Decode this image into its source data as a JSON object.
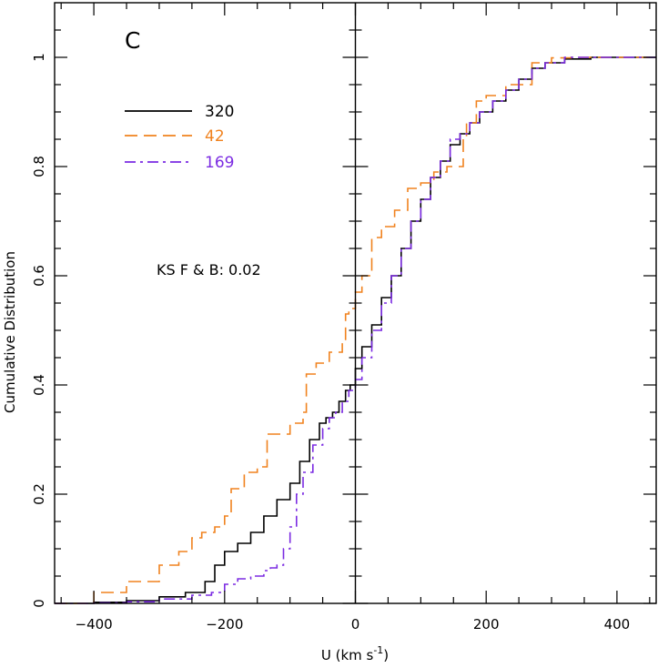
{
  "chart_data": {
    "type": "line",
    "subtype": "cumulative-distribution-step",
    "panel_label": "C",
    "xlabel_main": "U (km s",
    "xlabel_sup": "-1",
    "xlabel_close": ")",
    "ylabel": "Cumulative Distribution",
    "xlim": [
      -460,
      460
    ],
    "ylim": [
      0,
      1.1
    ],
    "xticks_major": [
      -400,
      -200,
      0,
      200,
      400
    ],
    "xtick_labels": [
      "−400",
      "−200",
      "0",
      "200",
      "400"
    ],
    "yticks_major": [
      0,
      0.2,
      0.4,
      0.6,
      0.8,
      1
    ],
    "ytick_labels": [
      "0",
      "0.2",
      "0.4",
      "0.6",
      "0.8",
      "1"
    ],
    "vertical_line_at": 0,
    "annotation": "KS F & B: 0.02",
    "legend_placement": "top-left",
    "series": [
      {
        "name": "320",
        "color": "#000000",
        "style": "solid",
        "x": [
          -460,
          -400,
          -350,
          -300,
          -260,
          -230,
          -215,
          -200,
          -180,
          -160,
          -140,
          -120,
          -100,
          -85,
          -70,
          -55,
          -45,
          -35,
          -25,
          -15,
          -8,
          0,
          10,
          25,
          40,
          55,
          70,
          85,
          100,
          115,
          130,
          145,
          160,
          175,
          190,
          210,
          230,
          250,
          270,
          290,
          320,
          360,
          460
        ],
        "y": [
          0,
          0.002,
          0.005,
          0.012,
          0.02,
          0.04,
          0.07,
          0.095,
          0.11,
          0.13,
          0.16,
          0.19,
          0.22,
          0.26,
          0.3,
          0.33,
          0.34,
          0.35,
          0.37,
          0.39,
          0.4,
          0.43,
          0.47,
          0.51,
          0.56,
          0.6,
          0.65,
          0.7,
          0.74,
          0.78,
          0.81,
          0.84,
          0.86,
          0.88,
          0.9,
          0.92,
          0.94,
          0.96,
          0.98,
          0.99,
          0.997,
          1,
          1
        ]
      },
      {
        "name": "42",
        "color": "#f0821e",
        "style": "dashed",
        "x": [
          -460,
          -400,
          -350,
          -300,
          -270,
          -250,
          -235,
          -215,
          -200,
          -190,
          -170,
          -150,
          -135,
          -120,
          -100,
          -80,
          -75,
          -60,
          -40,
          -20,
          -15,
          -10,
          0,
          10,
          25,
          40,
          60,
          80,
          100,
          120,
          140,
          160,
          165,
          170,
          185,
          200,
          230,
          270,
          300,
          330,
          460
        ],
        "y": [
          0,
          0.02,
          0.04,
          0.07,
          0.095,
          0.12,
          0.13,
          0.14,
          0.16,
          0.21,
          0.24,
          0.25,
          0.31,
          0.31,
          0.33,
          0.35,
          0.42,
          0.44,
          0.46,
          0.48,
          0.53,
          0.54,
          0.57,
          0.6,
          0.67,
          0.69,
          0.72,
          0.76,
          0.77,
          0.79,
          0.8,
          0.8,
          0.85,
          0.88,
          0.92,
          0.93,
          0.95,
          0.99,
          0.999,
          1,
          1
        ]
      },
      {
        "name": "169",
        "color": "#7b2be2",
        "style": "dashdot",
        "x": [
          -460,
          -400,
          -350,
          -300,
          -250,
          -220,
          -200,
          -180,
          -160,
          -140,
          -130,
          -120,
          -110,
          -100,
          -90,
          -80,
          -65,
          -50,
          -40,
          -30,
          -20,
          -10,
          0,
          10,
          25,
          40,
          55,
          70,
          85,
          100,
          115,
          130,
          145,
          160,
          175,
          190,
          210,
          230,
          250,
          270,
          290,
          320,
          460
        ],
        "y": [
          0,
          0.001,
          0.003,
          0.008,
          0.015,
          0.02,
          0.035,
          0.045,
          0.05,
          0.06,
          0.065,
          0.07,
          0.1,
          0.14,
          0.2,
          0.24,
          0.29,
          0.32,
          0.34,
          0.35,
          0.37,
          0.39,
          0.41,
          0.45,
          0.5,
          0.55,
          0.6,
          0.65,
          0.7,
          0.74,
          0.78,
          0.81,
          0.85,
          0.86,
          0.88,
          0.9,
          0.92,
          0.94,
          0.96,
          0.98,
          0.99,
          1,
          1
        ]
      }
    ]
  }
}
